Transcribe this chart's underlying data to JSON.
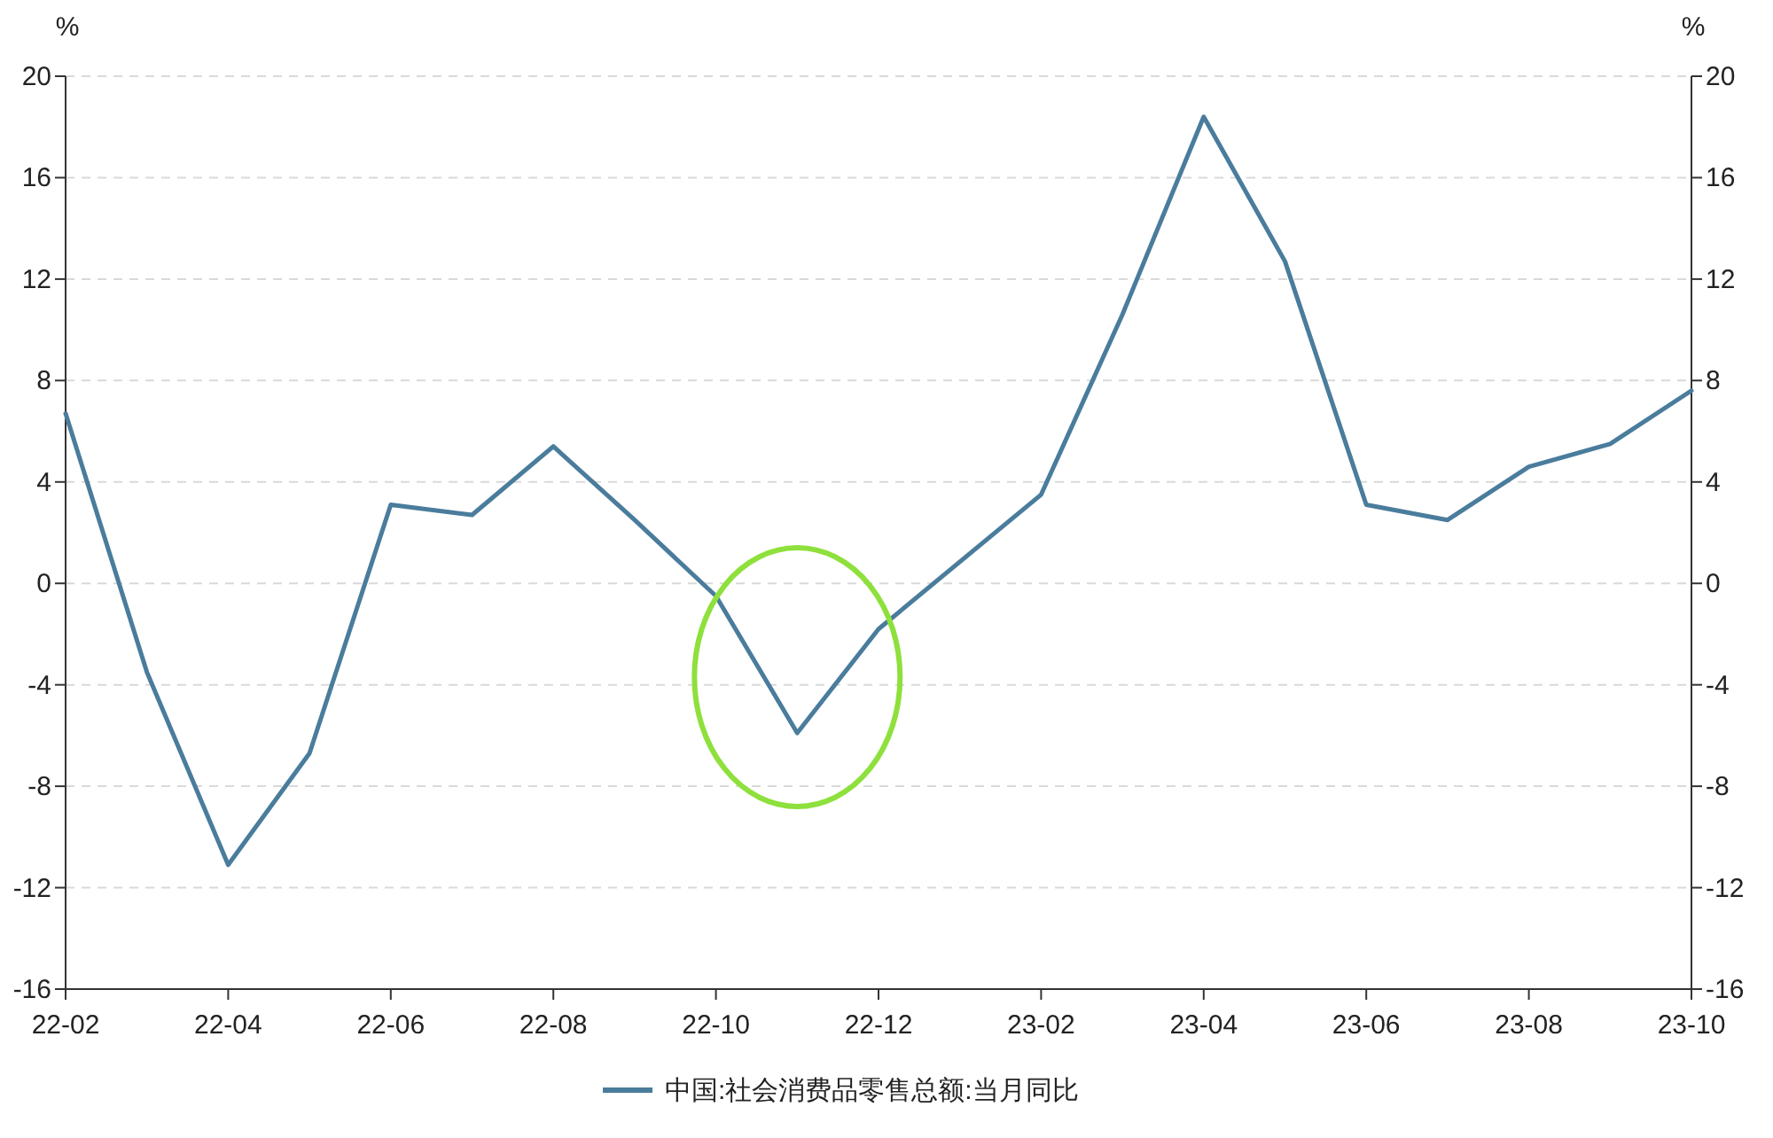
{
  "chart_data": {
    "type": "line",
    "categories": [
      "22-02",
      null,
      "22-04",
      null,
      "22-06",
      null,
      "22-08",
      null,
      "22-10",
      null,
      "22-12",
      null,
      "23-02",
      null,
      "23-04",
      null,
      "23-06",
      null,
      "23-08",
      null,
      "23-10"
    ],
    "series": [
      {
        "name": "中国:社会消费品零售总额:当月同比",
        "color": "#4a7c9c",
        "values": [
          6.7,
          -3.5,
          -11.1,
          -6.7,
          3.1,
          2.7,
          5.4,
          2.5,
          -0.5,
          -5.9,
          -1.8,
          null,
          3.5,
          10.6,
          18.4,
          12.7,
          3.1,
          2.5,
          4.6,
          5.5,
          7.6
        ]
      }
    ],
    "ylim": [
      -16,
      20
    ],
    "yticks": [
      -16,
      -12,
      -8,
      -4,
      0,
      4,
      8,
      12,
      16,
      20
    ],
    "y2lim": [
      -16,
      20
    ],
    "y2ticks": [
      -16,
      -12,
      -8,
      -4,
      0,
      4,
      8,
      12,
      16,
      20
    ],
    "ylabel": "%",
    "y2label": "%",
    "grid": "y",
    "legend": "bottom",
    "marker": "none",
    "line_style": "solid"
  }
}
